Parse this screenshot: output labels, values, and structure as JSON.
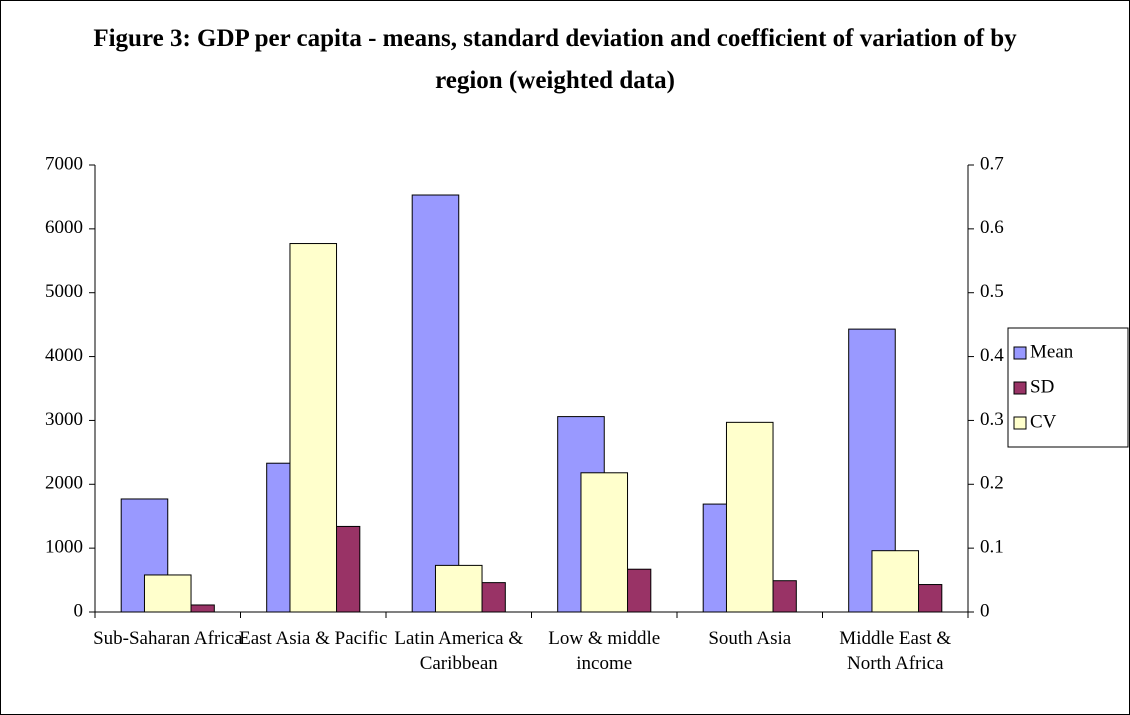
{
  "chart_data": {
    "type": "bar",
    "title": "Figure 3: GDP per capita  -  means, standard deviation and coefficient of variation of by region (weighted data)",
    "categories": [
      "Sub-Saharan Africa",
      "East Asia & Pacific",
      "Latin America & Caribbean",
      "Low & middle income",
      "South Asia",
      "Middle East & North Africa"
    ],
    "series": [
      {
        "name": "Mean",
        "color": "#9999ff",
        "values": [
          1770,
          2330,
          6530,
          3060,
          1690,
          4430
        ]
      },
      {
        "name": "SD",
        "color": "#993366",
        "values": [
          110,
          1340,
          460,
          670,
          490,
          430
        ]
      },
      {
        "name": "CV",
        "color": "#ffffcc",
        "axis": "y2",
        "values": [
          0.058,
          0.577,
          0.073,
          0.218,
          0.297,
          0.096
        ]
      }
    ],
    "ylim": [
      0,
      7000
    ],
    "yticks": [
      0,
      1000,
      2000,
      3000,
      4000,
      5000,
      6000,
      7000
    ],
    "y2lim": [
      0,
      0.7
    ],
    "y2ticks": [
      0,
      0.1,
      0.2,
      0.3,
      0.4,
      0.5,
      0.6,
      0.7
    ],
    "grid": false,
    "legend": "right"
  }
}
